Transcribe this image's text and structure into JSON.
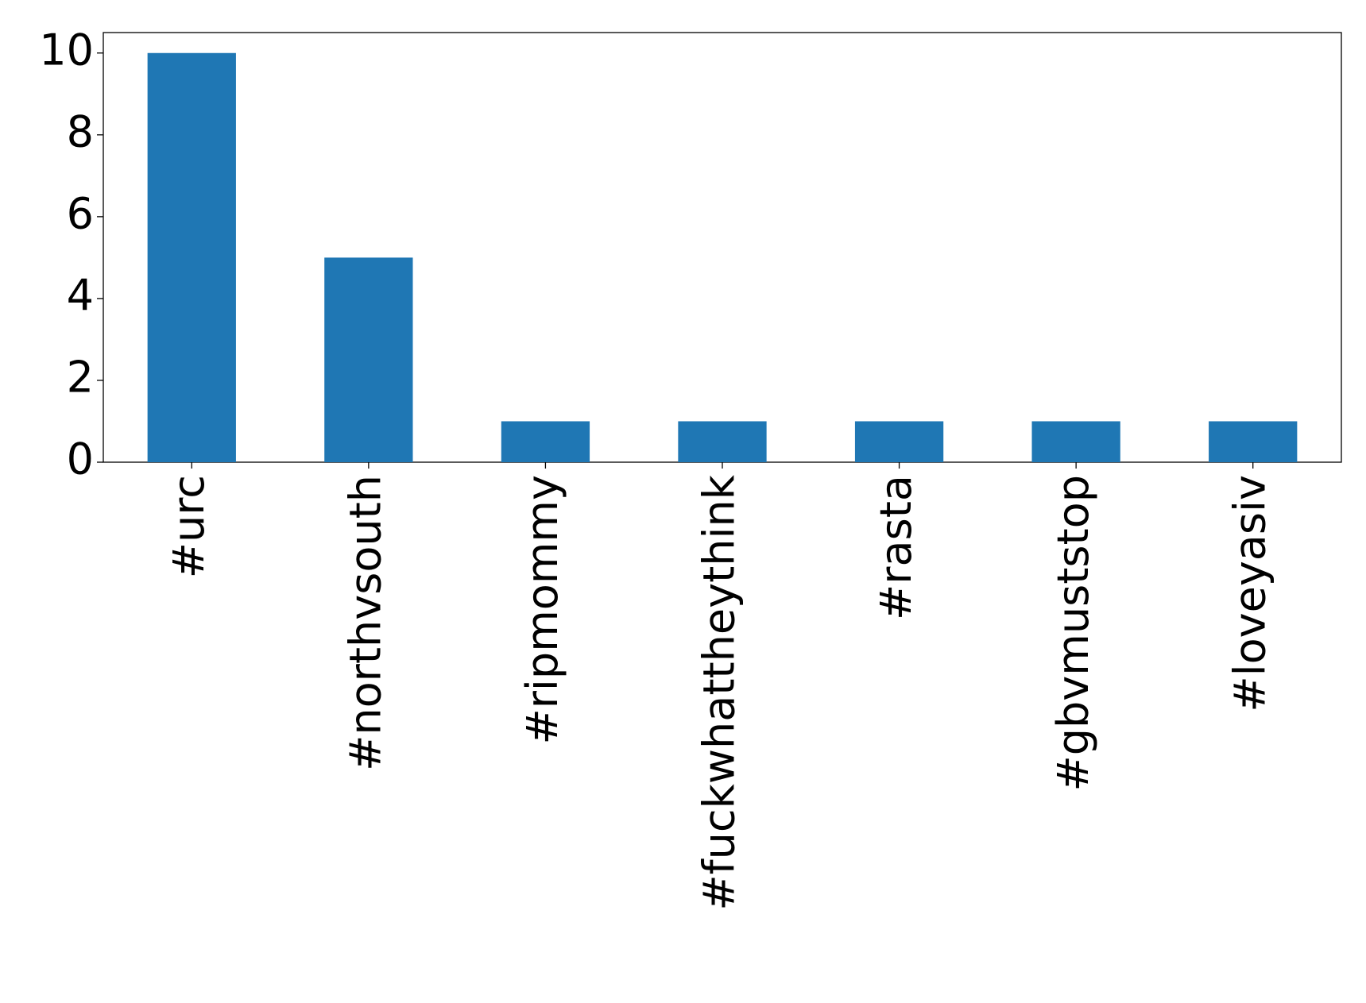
{
  "chart_data": {
    "type": "bar",
    "categories": [
      "#urc",
      "#northvsouth",
      "#ripmommy",
      "#fuckwhattheythink",
      "#rasta",
      "#gbvmuststop",
      "#loveyasiv"
    ],
    "values": [
      10,
      5,
      1,
      1,
      1,
      1,
      1
    ],
    "color": "#1f77b4",
    "ylim": [
      0,
      10.5
    ],
    "yticks": [
      0,
      2,
      4,
      6,
      8,
      10
    ],
    "grid": false
  }
}
